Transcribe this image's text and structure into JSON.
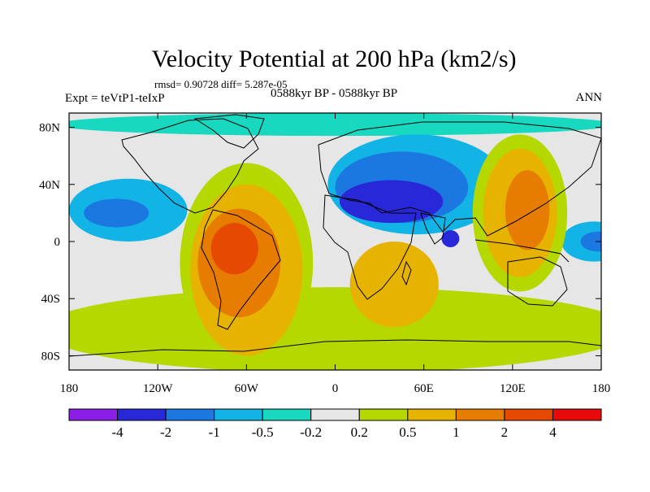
{
  "chart_data": {
    "type": "heatmap",
    "title": "Velocity Potential at 200 hPa (km2/s)",
    "stats": "rmsd= 0.90728  diff= 5.287e-05",
    "left_label": "Expt = teVtP1-teIxP",
    "center_label": "0588kyr BP - 0588kyr BP",
    "right_label": "ANN",
    "x_ticks": [
      {
        "value": -180,
        "label": "180"
      },
      {
        "value": -120,
        "label": "120W"
      },
      {
        "value": -60,
        "label": "60W"
      },
      {
        "value": 0,
        "label": "0"
      },
      {
        "value": 60,
        "label": "60E"
      },
      {
        "value": 120,
        "label": "120E"
      },
      {
        "value": 180,
        "label": "180"
      }
    ],
    "y_ticks": [
      {
        "value": 80,
        "label": "80N"
      },
      {
        "value": 40,
        "label": "40N"
      },
      {
        "value": 0,
        "label": "0"
      },
      {
        "value": -40,
        "label": "40S"
      },
      {
        "value": -80,
        "label": "80S"
      }
    ],
    "xlim": [
      -180,
      180
    ],
    "ylim": [
      -90,
      90
    ],
    "colorbar": {
      "levels": [
        "-4",
        "-2",
        "-1",
        "-0.5",
        "-0.2",
        "0.2",
        "0.5",
        "1",
        "2",
        "4"
      ],
      "colors": [
        "#8a1ee6",
        "#2828d8",
        "#1a78e0",
        "#12b4e6",
        "#18d8c0",
        "#e6e6e6",
        "#b4d800",
        "#e6b400",
        "#e67c00",
        "#e64a00",
        "#e60a0a"
      ]
    },
    "regions": [
      {
        "name": "north-polar-band",
        "lon": 0,
        "lat": 82,
        "rlon": 190,
        "rlat": 8,
        "level": 4
      },
      {
        "name": "eurasia-negative",
        "lon": 55,
        "lat": 40,
        "rlon": 60,
        "rlat": 35,
        "level": 3
      },
      {
        "name": "eurasia-negative-2",
        "lon": 45,
        "lat": 38,
        "rlon": 45,
        "rlat": 25,
        "level": 2
      },
      {
        "name": "mideast-core",
        "lon": 38,
        "lat": 28,
        "rlon": 35,
        "rlat": 15,
        "level": 1
      },
      {
        "name": "india-core",
        "lon": 78,
        "lat": 2,
        "rlon": 6,
        "rlat": 6,
        "level": 1
      },
      {
        "name": "n-pacific-negative",
        "lon": -140,
        "lat": 22,
        "rlon": 40,
        "rlat": 22,
        "level": 3
      },
      {
        "name": "n-pacific-core",
        "lon": -148,
        "lat": 20,
        "rlon": 22,
        "rlat": 10,
        "level": 2
      },
      {
        "name": "w-pacific-negative",
        "lon": 175,
        "lat": 0,
        "rlon": 22,
        "rlat": 14,
        "level": 3
      },
      {
        "name": "w-pacific-core",
        "lon": 178,
        "lat": 0,
        "rlon": 12,
        "rlat": 7,
        "level": 2
      },
      {
        "name": "southern-band",
        "lon": 0,
        "lat": -62,
        "rlon": 200,
        "rlat": 30,
        "level": 6
      },
      {
        "name": "americas-positive",
        "lon": -60,
        "lat": -15,
        "rlon": 45,
        "rlat": 70,
        "level": 6
      },
      {
        "name": "americas-positive-2",
        "lon": -60,
        "lat": -20,
        "rlon": 38,
        "rlat": 60,
        "level": 7
      },
      {
        "name": "americas-positive-3",
        "lon": -65,
        "lat": -15,
        "rlon": 28,
        "rlat": 38,
        "level": 8
      },
      {
        "name": "americas-core",
        "lon": -68,
        "lat": -5,
        "rlon": 16,
        "rlat": 18,
        "level": 9
      },
      {
        "name": "africa-positive",
        "lon": 40,
        "lat": -30,
        "rlon": 30,
        "rlat": 30,
        "level": 7
      },
      {
        "name": "asia-positive",
        "lon": 125,
        "lat": 20,
        "rlon": 32,
        "rlat": 55,
        "level": 6
      },
      {
        "name": "asia-positive-2",
        "lon": 125,
        "lat": 20,
        "rlon": 25,
        "rlat": 45,
        "level": 7
      },
      {
        "name": "asia-core",
        "lon": 130,
        "lat": 22,
        "rlon": 15,
        "rlat": 28,
        "level": 8
      }
    ]
  }
}
